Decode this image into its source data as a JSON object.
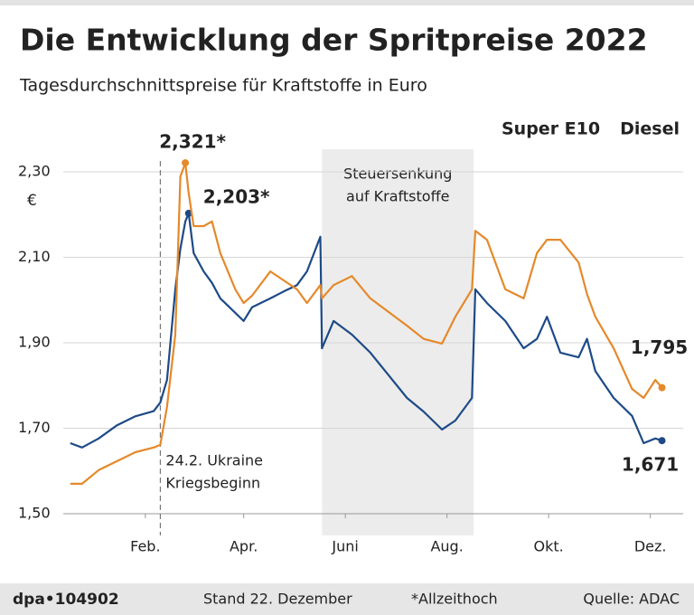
{
  "chart_data": {
    "type": "line",
    "title": "Die Entwicklung der Spritpreise 2022",
    "subtitle": "Tagesdurchschnittspreise für Kraftstoffe in Euro",
    "y_unit": "€",
    "x": [
      1,
      8,
      18,
      29,
      40,
      51,
      55,
      59,
      64,
      67,
      70,
      72,
      75,
      81,
      86,
      91,
      100,
      105,
      110,
      121,
      129,
      137,
      143,
      151,
      152,
      159,
      170,
      181,
      192,
      203,
      213,
      224,
      232,
      242,
      244,
      251,
      262,
      273,
      281,
      287,
      295,
      306,
      311,
      316,
      327,
      338,
      345,
      352,
      356
    ],
    "series": [
      {
        "name": "Super E10",
        "color": "#1d4a87",
        "values": [
          1.665,
          1.655,
          1.676,
          1.707,
          1.728,
          1.74,
          1.76,
          1.813,
          2.025,
          2.12,
          2.184,
          2.203,
          2.11,
          2.067,
          2.04,
          2.004,
          1.97,
          1.951,
          1.983,
          2.004,
          2.02,
          2.035,
          2.067,
          2.148,
          1.887,
          1.951,
          1.919,
          1.877,
          1.824,
          1.771,
          1.739,
          1.697,
          1.718,
          1.771,
          2.025,
          1.993,
          1.951,
          1.887,
          1.909,
          1.961,
          1.877,
          1.866,
          1.909,
          1.834,
          1.771,
          1.729,
          1.665,
          1.676,
          1.671
        ],
        "value_labels": [
          null,
          null,
          null,
          null,
          null,
          null,
          null,
          null,
          null,
          null,
          null,
          "2,203*",
          null,
          null,
          null,
          null,
          null,
          null,
          null,
          null,
          null,
          null,
          null,
          null,
          null,
          null,
          null,
          null,
          null,
          null,
          null,
          null,
          null,
          null,
          null,
          null,
          null,
          null,
          null,
          null,
          null,
          null,
          null,
          null,
          null,
          null,
          null,
          null,
          "1,671"
        ]
      },
      {
        "name": "Diesel",
        "color": "#e5892a",
        "values": [
          1.57,
          1.57,
          1.602,
          1.623,
          1.644,
          1.655,
          1.661,
          1.75,
          1.919,
          2.289,
          2.321,
          2.25,
          2.173,
          2.173,
          2.184,
          2.11,
          2.025,
          1.993,
          2.01,
          2.067,
          2.046,
          2.025,
          1.993,
          2.035,
          2.004,
          2.035,
          2.056,
          2.004,
          1.972,
          1.94,
          1.909,
          1.898,
          1.961,
          2.025,
          2.162,
          2.141,
          2.025,
          2.004,
          2.11,
          2.141,
          2.141,
          2.088,
          2.014,
          1.961,
          1.887,
          1.792,
          1.771,
          1.813,
          1.795
        ],
        "value_labels": [
          null,
          null,
          null,
          null,
          null,
          null,
          null,
          null,
          null,
          null,
          "2,321*",
          null,
          null,
          null,
          null,
          null,
          null,
          null,
          null,
          null,
          null,
          null,
          null,
          null,
          null,
          null,
          null,
          null,
          null,
          null,
          null,
          null,
          null,
          null,
          null,
          null,
          null,
          null,
          null,
          null,
          null,
          null,
          null,
          null,
          null,
          null,
          null,
          null,
          "1,795"
        ]
      }
    ],
    "xlim": [
      0,
      366
    ],
    "xticks": [
      {
        "value": 46,
        "label": "Feb."
      },
      {
        "value": 105,
        "label": "Apr."
      },
      {
        "value": 166,
        "label": "Juni"
      },
      {
        "value": 227,
        "label": "Aug."
      },
      {
        "value": 288,
        "label": "Okt."
      },
      {
        "value": 349,
        "label": "Dez."
      }
    ],
    "ylim": [
      1.5,
      2.3
    ],
    "yticks": [
      {
        "value": 1.5,
        "label": "1,50"
      },
      {
        "value": 1.7,
        "label": "1,70"
      },
      {
        "value": 1.9,
        "label": "1,90"
      },
      {
        "value": 2.1,
        "label": "2,10"
      },
      {
        "value": 2.3,
        "label": "2,30"
      }
    ],
    "grid": true,
    "legend": "top-right",
    "events": [
      {
        "x": 55,
        "label": [
          "24.2. Ukraine",
          "Kriegsbeginn"
        ]
      }
    ],
    "shaded": [
      {
        "x": [
          152,
          243
        ],
        "label": [
          "Steuersenkung",
          "auf Kraftstoffe"
        ]
      }
    ],
    "footer": {
      "source_id": "dpa•104902",
      "date": "Stand 22. Dezember",
      "note": "*Allzeithoch",
      "source": "Quelle: ADAC"
    }
  }
}
